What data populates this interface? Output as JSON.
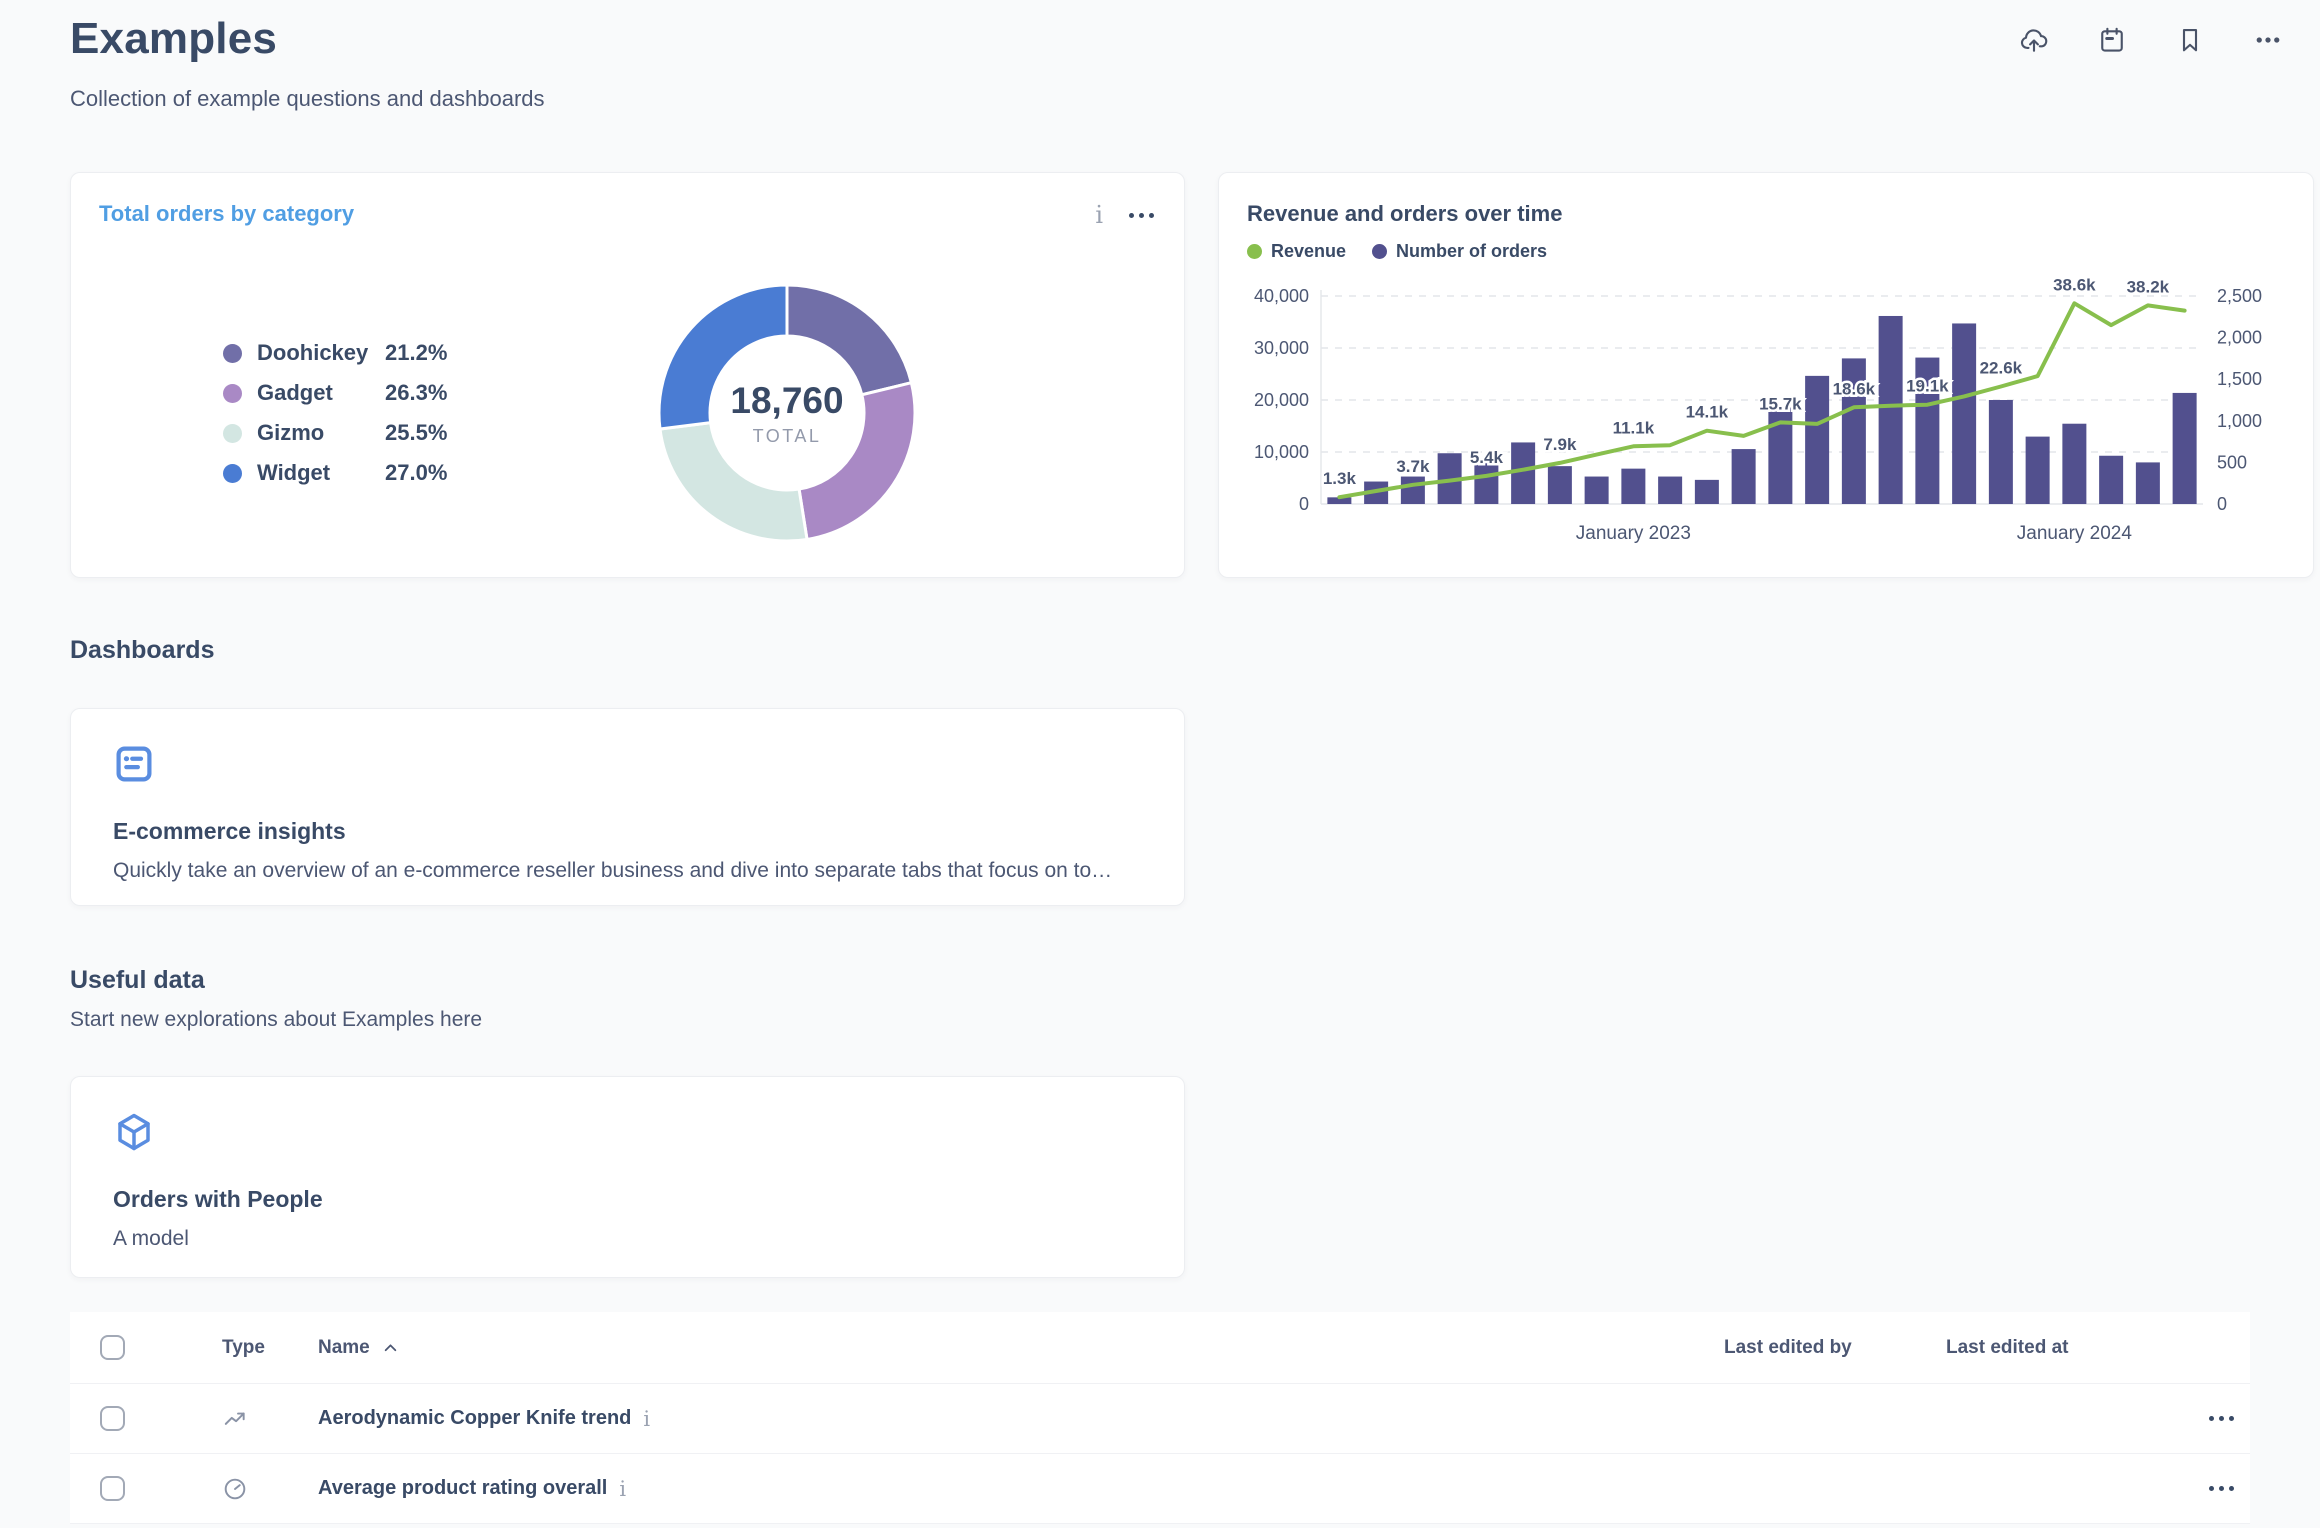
{
  "colors": {
    "accent_blue": "#509EE3",
    "heading_text": "#394A66",
    "body_text": "#4C5773",
    "muted_icon": "#9AA2B1",
    "bar_color": "#52508E",
    "line_color": "#88BF4D",
    "grid_line": "#E4E6EA"
  },
  "header": {
    "title": "Examples",
    "subtitle": "Collection of example questions and dashboards",
    "icons": [
      "cloud-upload-icon",
      "calendar-icon",
      "bookmark-icon",
      "more-icon"
    ]
  },
  "chart_data": [
    {
      "type": "pie",
      "donut": true,
      "title": "Total orders by category",
      "labels": [
        "Doohickey",
        "Gadget",
        "Gizmo",
        "Widget"
      ],
      "values_percent": [
        21.2,
        26.3,
        25.5,
        27.0
      ],
      "percent_display": [
        "21.2%",
        "26.3%",
        "25.5%",
        "27.0%"
      ],
      "colors": [
        "#716FA8",
        "#A989C5",
        "#D3E6E2",
        "#4A7CD3"
      ],
      "total": 18760,
      "total_display": "18,760",
      "center_label": "TOTAL",
      "legend_position": "left"
    },
    {
      "type": "bar+line",
      "title": "Revenue and orders over time",
      "series": [
        {
          "name": "Revenue",
          "kind": "line",
          "axis": "left",
          "color": "#88BF4D",
          "values": [
            1300,
            2500,
            3700,
            4500,
            5400,
            6600,
            7900,
            9500,
            11100,
            11300,
            14100,
            13100,
            15700,
            15400,
            18600,
            18900,
            19100,
            20700,
            22600,
            24600,
            38600,
            34400,
            38200,
            37200
          ]
        },
        {
          "name": "Number of orders",
          "kind": "bar",
          "axis": "right",
          "color": "#52508E",
          "values": [
            80,
            270,
            330,
            610,
            500,
            740,
            455,
            330,
            425,
            330,
            290,
            660,
            1160,
            1540,
            1750,
            2260,
            1760,
            2170,
            1250,
            810,
            965,
            580,
            500,
            1335
          ]
        }
      ],
      "point_labels": [
        "1.3k",
        null,
        "3.7k",
        null,
        "5.4k",
        null,
        "7.9k",
        null,
        "11.1k",
        null,
        "14.1k",
        null,
        "15.7k",
        null,
        "18.6k",
        null,
        "19.1k",
        null,
        "22.6k",
        null,
        "38.6k",
        null,
        "38.2k",
        null
      ],
      "left_axis": {
        "max": 40000,
        "tick_step": 10000,
        "tick_labels": [
          "0",
          "10,000",
          "20,000",
          "30,000",
          "40,000"
        ]
      },
      "right_axis": {
        "max": 2500,
        "tick_step": 500,
        "tick_labels": [
          "0",
          "500",
          "1,000",
          "1,500",
          "2,000",
          "2,500"
        ]
      },
      "x_ticks": [
        {
          "index": 8,
          "label": "January 2023"
        },
        {
          "index": 20,
          "label": "January 2024"
        }
      ],
      "grid": "dashed",
      "legend_position": "top"
    }
  ],
  "sections": {
    "dashboards": {
      "heading": "Dashboards",
      "items": [
        {
          "icon": "dashboard-icon",
          "title": "E-commerce insights",
          "description": "Quickly take an overview of an e-commerce reseller business and dive into separate tabs that focus on to…"
        }
      ]
    },
    "useful_data": {
      "heading": "Useful data",
      "subheading": "Start new explorations about Examples here",
      "items": [
        {
          "icon": "model-icon",
          "title": "Orders with People",
          "description": "A model"
        }
      ]
    }
  },
  "table": {
    "columns": [
      "Type",
      "Name",
      "Last edited by",
      "Last edited at"
    ],
    "sort": {
      "column": "Name",
      "direction": "asc"
    },
    "rows": [
      {
        "type_icon": "trend-icon",
        "name": "Aerodynamic Copper Knife trend",
        "last_edited_by": "",
        "last_edited_at": ""
      },
      {
        "type_icon": "gauge-icon",
        "name": "Average product rating overall",
        "last_edited_by": "",
        "last_edited_at": ""
      }
    ]
  }
}
